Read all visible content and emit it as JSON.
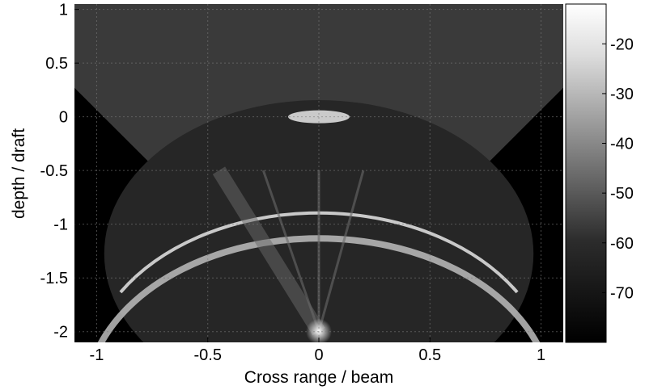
{
  "chart_data": {
    "type": "heatmap",
    "title": "",
    "xlabel": "Cross range / beam",
    "ylabel": "depth / draft",
    "xlim": [
      -1.1,
      1.1
    ],
    "ylim": [
      -2.1,
      1.05
    ],
    "x_ticks": [
      -1,
      -0.5,
      0,
      0.5,
      1
    ],
    "x_tick_labels": [
      "-1",
      "-0.5",
      "0",
      "0.5",
      "1"
    ],
    "y_ticks": [
      1,
      0.5,
      0,
      -0.5,
      -1,
      -1.5,
      -2
    ],
    "y_tick_labels": [
      "1",
      "0.5",
      "0",
      "-0.5",
      "-1",
      "-1.5",
      "-2"
    ],
    "grid": true,
    "colormap": "gray",
    "colorbar": {
      "range": [
        -80,
        -12
      ],
      "ticks": [
        -20,
        -30,
        -40,
        -50,
        -60,
        -70
      ],
      "tick_labels": [
        "-20",
        "-30",
        "-40",
        "-50",
        "-60",
        "-70"
      ]
    },
    "sector": {
      "apex": [
        0,
        -2.0
      ],
      "half_angle_deg": 45,
      "max_range": 3.2
    },
    "hull_arc": {
      "center": [
        0,
        -1.2
      ],
      "radius": 1.05
    },
    "colors": {
      "background": "#000000",
      "sector_fill": "#3a3a3a",
      "arc_bright": "#dcdcdc",
      "grid": "#7a7a7a"
    }
  }
}
